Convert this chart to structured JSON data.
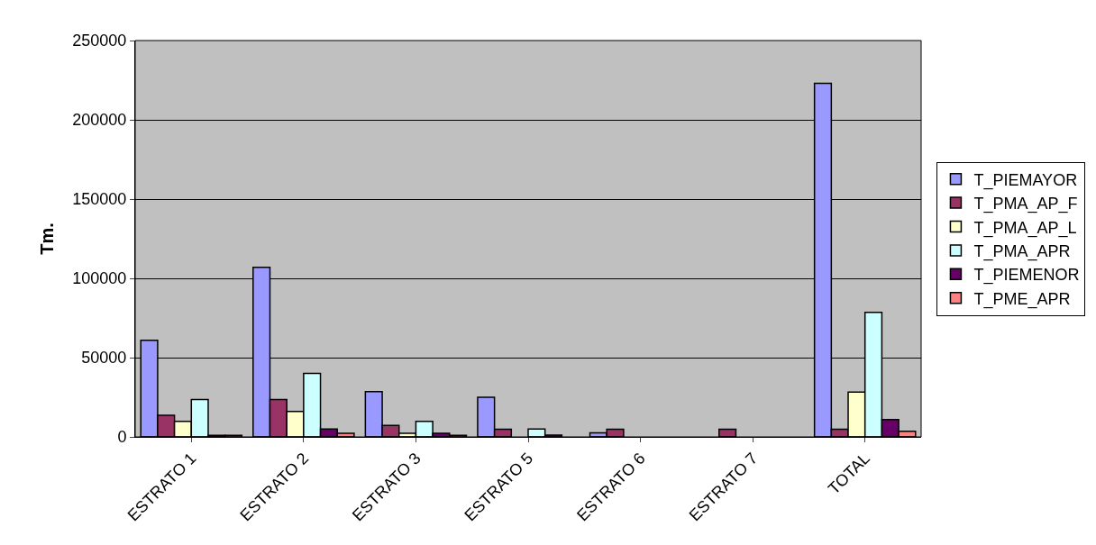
{
  "chart_data": {
    "type": "bar",
    "ylabel": "Tm.",
    "categories": [
      "ESTRATO 1",
      "ESTRATO 2",
      "ESTRATO 3",
      "ESTRATO 5",
      "ESTRATO 6",
      "ESTRATO 7",
      "TOTAL"
    ],
    "series": [
      {
        "name": "T_PIEMAYOR",
        "color": "#9999ff",
        "values": [
          61000,
          107000,
          28600,
          25000,
          2500,
          null,
          223000
        ]
      },
      {
        "name": "T_PMA_AP_F",
        "color": "#993366",
        "values": [
          13600,
          23600,
          7300,
          4800,
          4800,
          4800,
          4800
        ]
      },
      {
        "name": "T_PMA_AP_L",
        "color": "#ffffcc",
        "values": [
          9800,
          16000,
          2300,
          null,
          null,
          null,
          28300
        ]
      },
      {
        "name": "T_PMA_APR",
        "color": "#ccffff",
        "values": [
          23600,
          40000,
          9800,
          5000,
          null,
          null,
          78500
        ]
      },
      {
        "name": "T_PIEMENOR",
        "color": "#660066",
        "values": [
          1000,
          5000,
          2300,
          1200,
          null,
          null,
          11000
        ]
      },
      {
        "name": "T_PME_APR",
        "color": "#ff8080",
        "values": [
          1000,
          2300,
          1000,
          null,
          null,
          null,
          3500
        ]
      }
    ],
    "ylim": [
      0,
      250000
    ],
    "yticks": [
      0,
      50000,
      100000,
      150000,
      200000,
      250000
    ],
    "grid": "y",
    "legend": "right"
  }
}
